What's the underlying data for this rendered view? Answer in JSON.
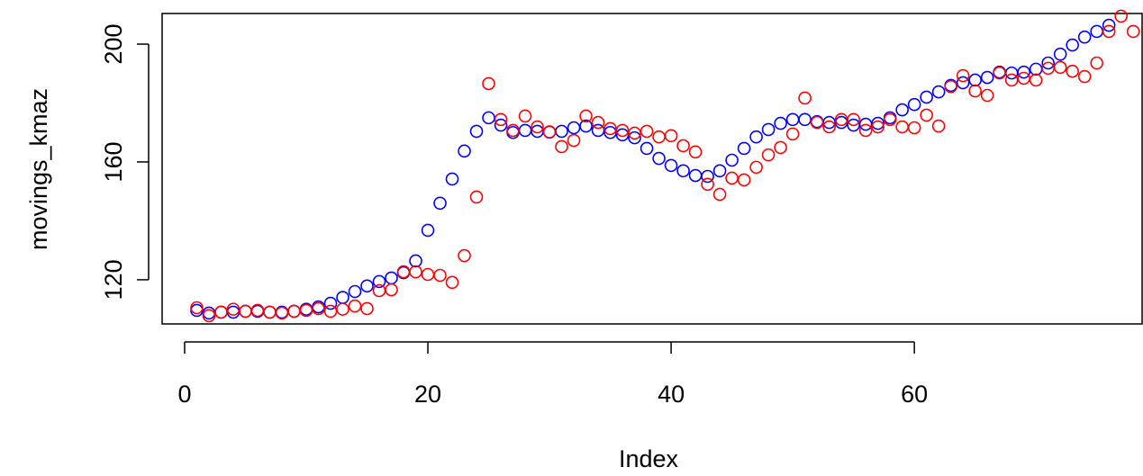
{
  "chart_data": {
    "type": "scatter",
    "xlabel": "Index",
    "ylabel": "movings_kmaz",
    "xlim": [
      -1.85,
      78.8
    ],
    "ylim": [
      105,
      210.4
    ],
    "xticks": [
      0,
      20,
      40,
      60
    ],
    "yticks": [
      120,
      160,
      200
    ],
    "x": [
      1,
      2,
      3,
      4,
      5,
      6,
      7,
      8,
      9,
      10,
      11,
      12,
      13,
      14,
      15,
      16,
      17,
      18,
      19,
      20,
      21,
      22,
      23,
      24,
      25,
      26,
      27,
      28,
      29,
      30,
      31,
      32,
      33,
      34,
      35,
      36,
      37,
      38,
      39,
      40,
      41,
      42,
      43,
      44,
      45,
      46,
      47,
      48,
      49,
      50,
      51,
      52,
      53,
      54,
      55,
      56,
      57,
      58,
      59,
      60,
      61,
      62,
      63,
      64,
      65,
      66,
      67,
      68,
      69,
      70,
      71,
      72,
      73,
      74,
      75,
      76,
      77,
      78
    ],
    "series": [
      {
        "color": "#0000ff",
        "values": [
          109.6,
          108.7,
          109,
          109,
          109.3,
          109.3,
          109,
          109,
          109.3,
          110,
          110.8,
          112,
          114,
          116,
          117.9,
          119.4,
          120.6,
          122.4,
          126.4,
          136.8,
          146,
          154.2,
          163.7,
          170.4,
          175,
          172.5,
          170,
          170.7,
          170.4,
          170.2,
          170.4,
          171.6,
          172.2,
          170.7,
          170,
          169.2,
          168.2,
          164.6,
          161.2,
          158.8,
          157,
          155.4,
          155.1,
          157,
          160.6,
          164.6,
          168.5,
          171,
          173.1,
          174.4,
          174.4,
          173.7,
          173.4,
          173.4,
          172.5,
          172.8,
          173.1,
          175,
          177.7,
          179.5,
          182,
          183.8,
          186,
          186.9,
          187.8,
          188.7,
          190.5,
          190.2,
          190.5,
          191.5,
          193.6,
          196.6,
          199.7,
          202.4,
          204.3,
          206.4,
          null,
          null
        ]
      },
      {
        "color": "#ff0000",
        "values": [
          110.5,
          107.8,
          109,
          110,
          109.3,
          109.6,
          109,
          108.7,
          109.3,
          109.6,
          110.2,
          109.3,
          110,
          111.1,
          110.2,
          116.3,
          116.6,
          122.7,
          122.7,
          121.8,
          121.5,
          119.1,
          128.2,
          148.1,
          186.6,
          174.4,
          170.7,
          175.6,
          171.9,
          170.1,
          165.2,
          167.3,
          175.6,
          173.4,
          171.3,
          170.7,
          169.8,
          170.4,
          168.5,
          168.9,
          165.5,
          163.4,
          152.4,
          149,
          154.5,
          153.9,
          158.2,
          162.4,
          164.9,
          169.5,
          181.7,
          173.4,
          171.9,
          174.4,
          174.4,
          170.7,
          171.9,
          174.4,
          171.9,
          171.6,
          175.9,
          172.2,
          185.6,
          189.3,
          184.1,
          182.6,
          190.2,
          187.8,
          188.4,
          187.8,
          191.8,
          192.1,
          190.8,
          189,
          193.6,
          204.3,
          209.5,
          204.3
        ]
      }
    ]
  }
}
